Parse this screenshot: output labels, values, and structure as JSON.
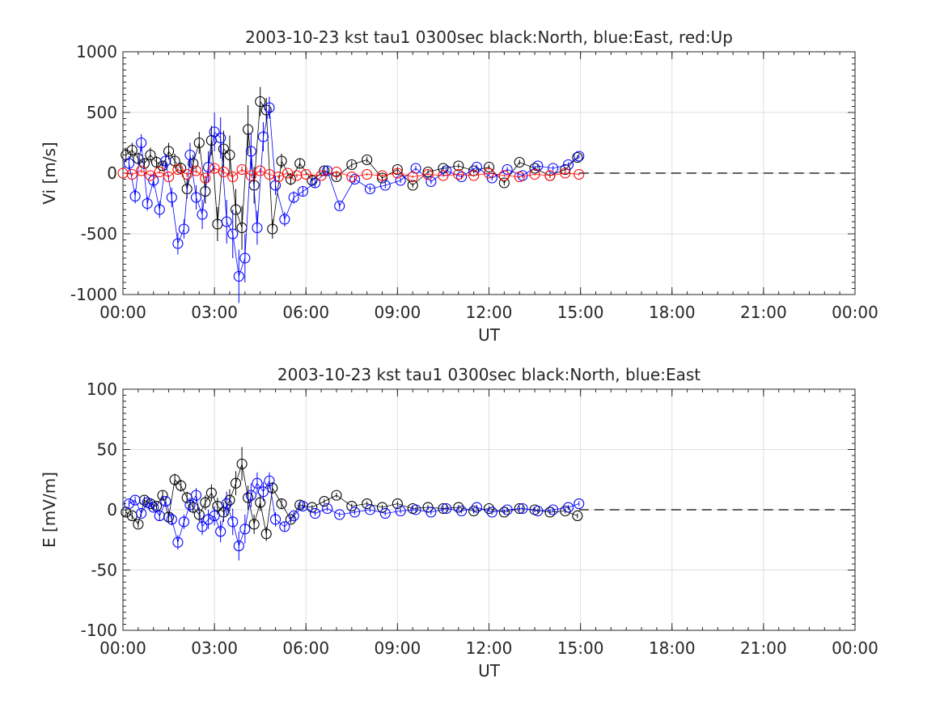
{
  "chart_data": [
    {
      "type": "scatter",
      "title": "2003-10-23 kst tau1 0300sec black:North, blue:East, red:Up",
      "xlabel": "UT",
      "ylabel": "Vi [m/s]",
      "xlim": [
        0,
        24
      ],
      "ylim": [
        -1000,
        1000
      ],
      "xticks": [
        0,
        3,
        6,
        9,
        12,
        15,
        18,
        21,
        24
      ],
      "xtick_labels": [
        "00:00",
        "03:00",
        "06:00",
        "09:00",
        "12:00",
        "15:00",
        "18:00",
        "21:00",
        "00:00"
      ],
      "yticks": [
        1000,
        500,
        0,
        -500,
        -1000
      ],
      "ytick_labels": [
        "1000",
        "500",
        "0",
        "-500",
        "-1000"
      ],
      "grid": true,
      "marker": "open-circle",
      "zero_line": "dashed",
      "series": [
        {
          "name": "North",
          "color": "#000000",
          "x": [
            0.1,
            0.3,
            0.5,
            0.7,
            0.9,
            1.1,
            1.3,
            1.5,
            1.7,
            1.9,
            2.1,
            2.3,
            2.5,
            2.7,
            2.9,
            3.1,
            3.3,
            3.5,
            3.7,
            3.9,
            4.1,
            4.3,
            4.5,
            4.7,
            4.9,
            5.2,
            5.5,
            5.8,
            6.2,
            6.6,
            7.0,
            7.5,
            8.0,
            8.5,
            9.0,
            9.5,
            10.0,
            10.5,
            11.0,
            11.5,
            12.0,
            12.5,
            13.0,
            13.5,
            14.0,
            14.5,
            14.9
          ],
          "y": [
            150,
            190,
            120,
            80,
            150,
            90,
            60,
            180,
            100,
            40,
            -130,
            80,
            250,
            -150,
            270,
            -420,
            200,
            150,
            -300,
            -450,
            360,
            -100,
            590,
            520,
            -460,
            100,
            -50,
            80,
            -60,
            20,
            -30,
            70,
            110,
            -40,
            30,
            -100,
            10,
            40,
            60,
            20,
            50,
            -80,
            90,
            40,
            -20,
            30,
            130
          ],
          "yerr": [
            60,
            60,
            50,
            40,
            60,
            50,
            40,
            70,
            60,
            50,
            80,
            70,
            90,
            100,
            120,
            140,
            150,
            160,
            170,
            180,
            200,
            150,
            120,
            100,
            80,
            60,
            50,
            40,
            40,
            30,
            30,
            30,
            25,
            25,
            20,
            20,
            20,
            20,
            20,
            20,
            20,
            20,
            20,
            20,
            20,
            20,
            20
          ]
        },
        {
          "name": "East",
          "color": "#0000ff",
          "x": [
            0.2,
            0.4,
            0.6,
            0.8,
            1.0,
            1.2,
            1.4,
            1.6,
            1.8,
            2.0,
            2.2,
            2.4,
            2.6,
            2.8,
            3.0,
            3.2,
            3.4,
            3.6,
            3.8,
            4.0,
            4.2,
            4.4,
            4.6,
            4.8,
            5.0,
            5.3,
            5.6,
            5.9,
            6.3,
            6.7,
            7.1,
            7.6,
            8.1,
            8.6,
            9.1,
            9.6,
            10.1,
            10.6,
            11.1,
            11.6,
            12.1,
            12.6,
            13.1,
            13.6,
            14.1,
            14.6,
            14.95
          ],
          "y": [
            80,
            -190,
            250,
            -250,
            -60,
            -300,
            100,
            -200,
            -580,
            -460,
            150,
            -200,
            -340,
            50,
            340,
            290,
            -400,
            -500,
            -850,
            -700,
            180,
            -450,
            300,
            540,
            -100,
            -380,
            -200,
            -150,
            -80,
            20,
            -270,
            -50,
            -130,
            -100,
            -60,
            40,
            -70,
            20,
            -30,
            50,
            -40,
            30,
            -20,
            60,
            40,
            70,
            140
          ],
          "yerr": [
            60,
            60,
            70,
            60,
            60,
            70,
            60,
            80,
            90,
            80,
            100,
            100,
            120,
            130,
            160,
            170,
            180,
            200,
            220,
            200,
            150,
            140,
            120,
            90,
            80,
            60,
            50,
            40,
            40,
            30,
            30,
            30,
            25,
            25,
            20,
            20,
            20,
            20,
            20,
            20,
            20,
            20,
            20,
            20,
            20,
            20,
            20
          ]
        },
        {
          "name": "Up",
          "color": "#ff0000",
          "x": [
            0.0,
            0.3,
            0.6,
            0.9,
            1.2,
            1.5,
            1.8,
            2.1,
            2.4,
            2.7,
            3.0,
            3.3,
            3.6,
            3.9,
            4.2,
            4.5,
            4.8,
            5.1,
            5.4,
            5.7,
            6.0,
            6.5,
            7.0,
            7.5,
            8.0,
            8.5,
            9.0,
            9.5,
            10.0,
            10.5,
            11.0,
            11.5,
            12.0,
            12.5,
            13.0,
            13.5,
            14.0,
            14.5,
            14.95
          ],
          "y": [
            0,
            -10,
            20,
            -20,
            10,
            -30,
            30,
            -10,
            20,
            -40,
            40,
            10,
            -30,
            30,
            -20,
            20,
            -10,
            -30,
            0,
            -20,
            -10,
            -20,
            10,
            -30,
            -10,
            -20,
            0,
            -30,
            -10,
            -20,
            -10,
            -20,
            0,
            -20,
            -30,
            -10,
            -20,
            0,
            -10
          ],
          "yerr": [
            15,
            15,
            15,
            15,
            15,
            15,
            20,
            20,
            20,
            20,
            25,
            25,
            25,
            25,
            20,
            20,
            15,
            15,
            15,
            15,
            10,
            10,
            10,
            10,
            10,
            10,
            10,
            10,
            10,
            10,
            10,
            10,
            10,
            10,
            10,
            10,
            10,
            10,
            10
          ]
        }
      ]
    },
    {
      "type": "scatter",
      "title": "2003-10-23 kst tau1 0300sec black:North, blue:East",
      "xlabel": "UT",
      "ylabel": "E [mV/m]",
      "xlim": [
        0,
        24
      ],
      "ylim": [
        -100,
        100
      ],
      "xticks": [
        0,
        3,
        6,
        9,
        12,
        15,
        18,
        21,
        24
      ],
      "xtick_labels": [
        "00:00",
        "03:00",
        "06:00",
        "09:00",
        "12:00",
        "15:00",
        "18:00",
        "21:00",
        "00:00"
      ],
      "yticks": [
        100,
        50,
        0,
        -50,
        -100
      ],
      "ytick_labels": [
        "100",
        "50",
        "0",
        "-50",
        "-100"
      ],
      "grid": true,
      "marker": "open-circle",
      "zero_line": "dashed",
      "series": [
        {
          "name": "North",
          "color": "#000000",
          "x": [
            0.1,
            0.3,
            0.5,
            0.7,
            0.9,
            1.1,
            1.3,
            1.5,
            1.7,
            1.9,
            2.1,
            2.3,
            2.5,
            2.7,
            2.9,
            3.1,
            3.3,
            3.5,
            3.7,
            3.9,
            4.1,
            4.3,
            4.5,
            4.7,
            4.9,
            5.2,
            5.5,
            5.8,
            6.2,
            6.6,
            7.0,
            7.5,
            8.0,
            8.5,
            9.0,
            9.5,
            10.0,
            10.5,
            11.0,
            11.5,
            12.0,
            12.5,
            13.0,
            13.5,
            14.0,
            14.5,
            14.9
          ],
          "y": [
            -2,
            -5,
            -12,
            8,
            5,
            3,
            12,
            -6,
            25,
            20,
            10,
            2,
            -4,
            6,
            14,
            3,
            -2,
            8,
            22,
            38,
            10,
            -12,
            6,
            -20,
            18,
            5,
            -8,
            4,
            2,
            7,
            12,
            3,
            5,
            2,
            5,
            1,
            2,
            1,
            2,
            -1,
            1,
            -2,
            1,
            0,
            -2,
            -1,
            -5
          ],
          "yerr": [
            3,
            3,
            3,
            3,
            3,
            3,
            4,
            4,
            5,
            5,
            5,
            5,
            6,
            6,
            7,
            7,
            8,
            9,
            10,
            14,
            10,
            8,
            7,
            6,
            5,
            4,
            3,
            3,
            2,
            2,
            2,
            2,
            2,
            2,
            2,
            2,
            2,
            2,
            2,
            2,
            2,
            2,
            2,
            2,
            2,
            2,
            2
          ]
        },
        {
          "name": "East",
          "color": "#0000ff",
          "x": [
            0.2,
            0.4,
            0.6,
            0.8,
            1.0,
            1.2,
            1.4,
            1.6,
            1.8,
            2.0,
            2.2,
            2.4,
            2.6,
            2.8,
            3.0,
            3.2,
            3.4,
            3.6,
            3.8,
            4.0,
            4.2,
            4.4,
            4.6,
            4.8,
            5.0,
            5.3,
            5.6,
            5.9,
            6.3,
            6.7,
            7.1,
            7.6,
            8.1,
            8.6,
            9.1,
            9.6,
            10.1,
            10.6,
            11.1,
            11.6,
            12.1,
            12.6,
            13.1,
            13.6,
            14.1,
            14.6,
            14.95
          ],
          "y": [
            5,
            8,
            -3,
            6,
            2,
            -5,
            7,
            -8,
            -27,
            -10,
            4,
            12,
            -14,
            -8,
            -5,
            -18,
            5,
            -10,
            -30,
            -16,
            12,
            22,
            15,
            24,
            -8,
            -14,
            -5,
            3,
            -3,
            1,
            -4,
            -2,
            0,
            -3,
            -1,
            0,
            -2,
            1,
            -1,
            2,
            -2,
            0,
            1,
            -1,
            0,
            2,
            5
          ],
          "yerr": [
            3,
            3,
            3,
            3,
            3,
            4,
            4,
            5,
            6,
            6,
            6,
            6,
            7,
            8,
            8,
            9,
            10,
            11,
            12,
            12,
            10,
            9,
            8,
            7,
            6,
            4,
            3,
            3,
            2,
            2,
            2,
            2,
            2,
            2,
            2,
            2,
            2,
            2,
            2,
            2,
            2,
            2,
            2,
            2,
            2,
            2,
            2
          ]
        }
      ]
    }
  ]
}
